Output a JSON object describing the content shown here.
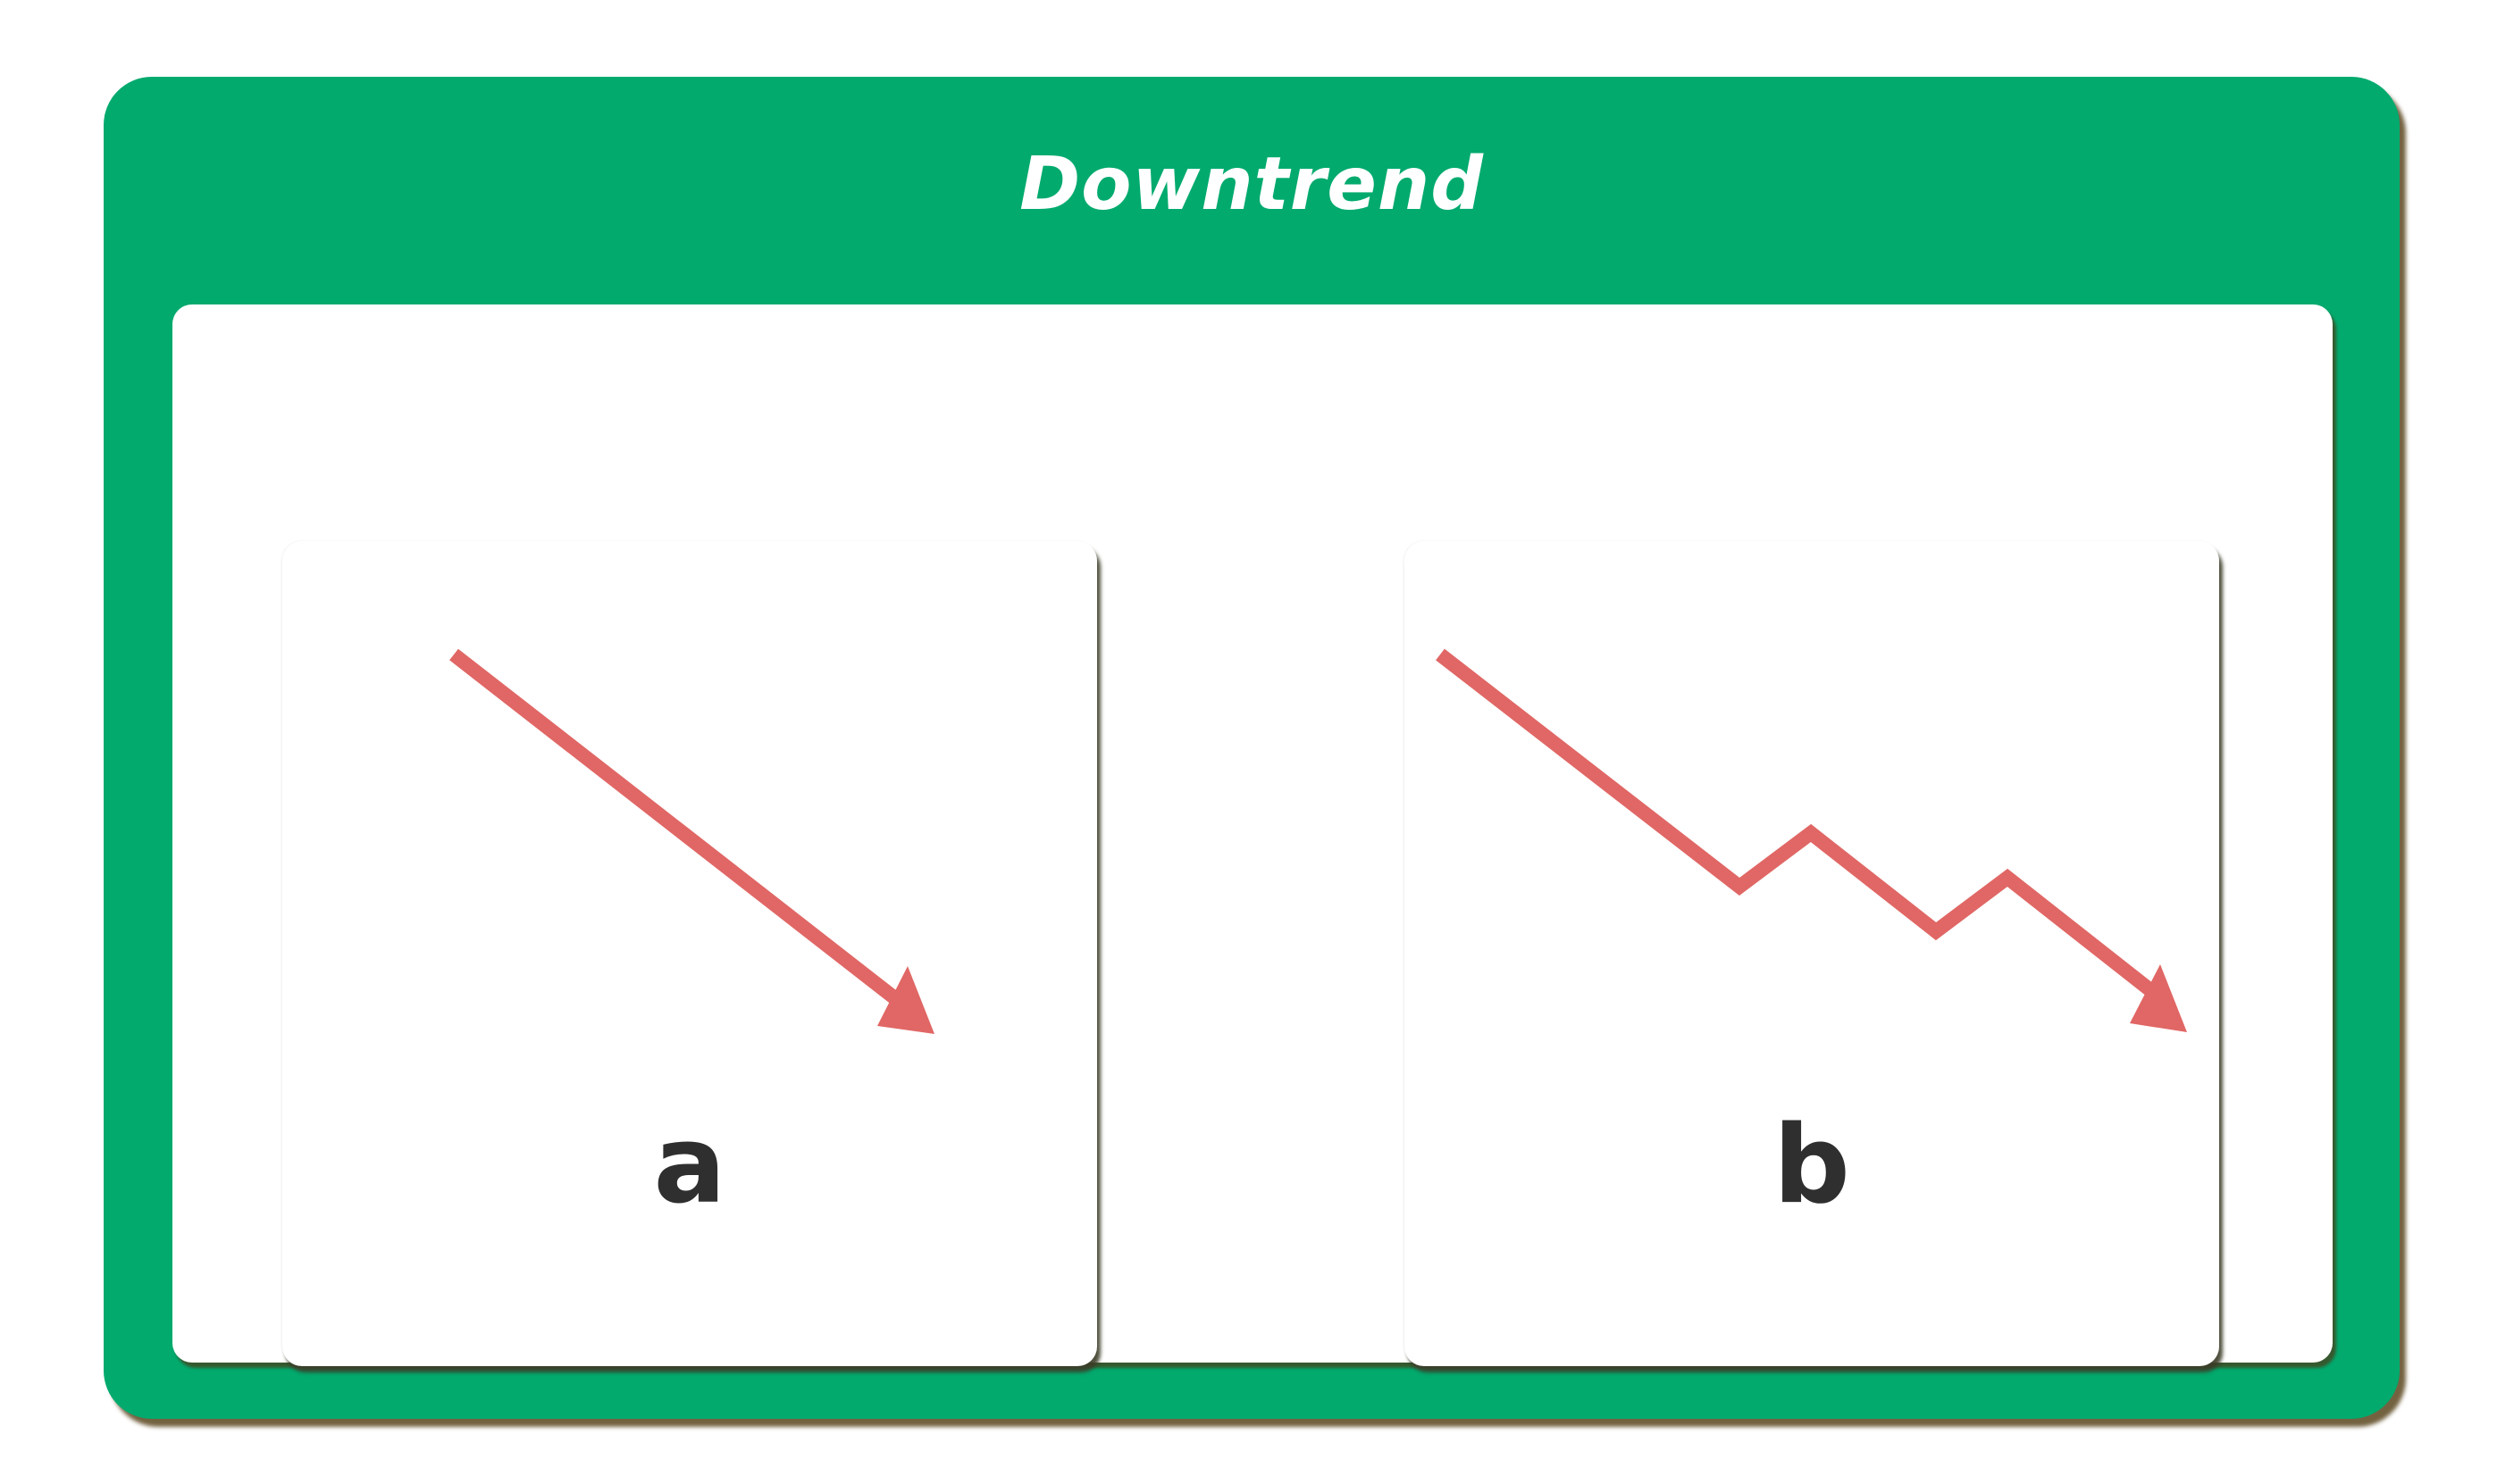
{
  "title": "Downtrend",
  "colors": {
    "frame_green": "#02AA6E",
    "card_white": "#FFFFFF",
    "arrow_red": "#E06765",
    "label_dark": "#2F2F2F"
  },
  "panels": [
    {
      "label": "a",
      "arrow_icon": "straight-down-arrow-icon"
    },
    {
      "label": "b",
      "arrow_icon": "zigzag-down-arrow-icon"
    }
  ]
}
